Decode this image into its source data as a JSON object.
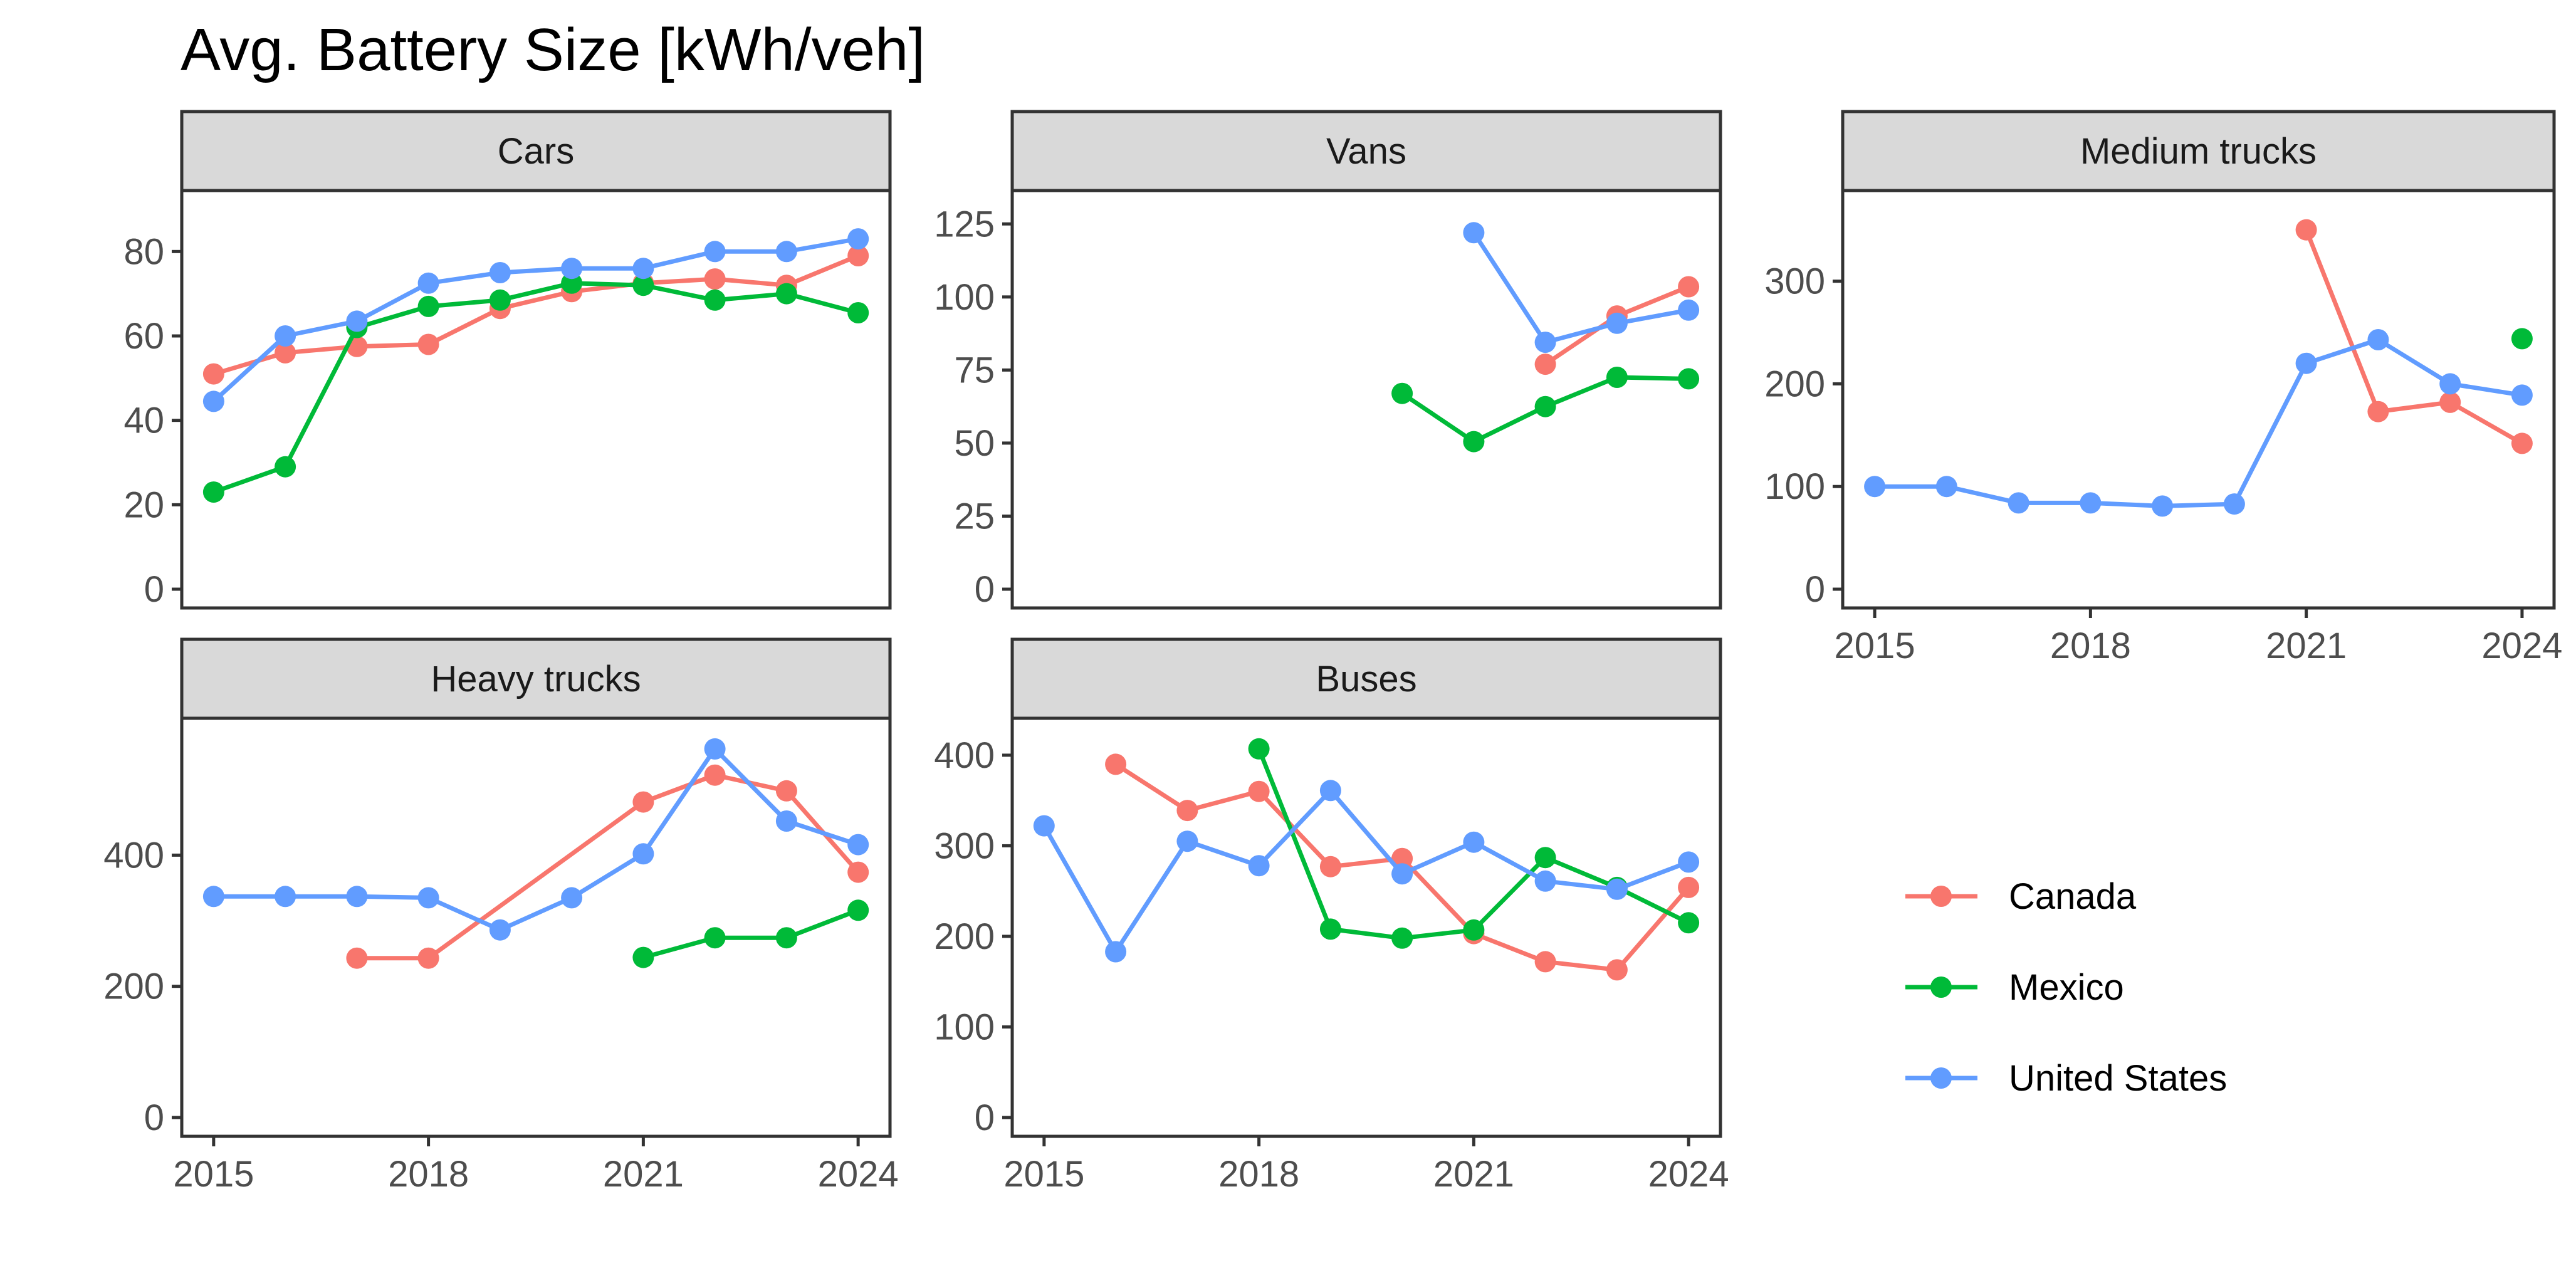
{
  "title": "Avg. Battery Size [kWh/veh]",
  "chart_data": {
    "type": "line",
    "title": "Avg. Battery Size [kWh/veh]",
    "facet": "small multiples, free y scales, shared x",
    "x_ticks": [
      2015,
      2018,
      2021,
      2024
    ],
    "xlim": [
      2015,
      2024
    ],
    "grid": false,
    "legend": {
      "position": "right",
      "entries": [
        {
          "name": "Canada",
          "color": "#F8766D"
        },
        {
          "name": "Mexico",
          "color": "#00BA38"
        },
        {
          "name": "United States",
          "color": "#619CFF"
        }
      ]
    },
    "panels": [
      {
        "name": "Cars",
        "ylim": [
          0,
          90
        ],
        "y_ticks": [
          0,
          20,
          40,
          60,
          80
        ],
        "series": [
          {
            "name": "Canada",
            "color": "#F8766D",
            "points": [
              [
                2015,
                51
              ],
              [
                2016,
                56
              ],
              [
                2017,
                57.5
              ],
              [
                2018,
                58
              ],
              [
                2019,
                66.5
              ],
              [
                2020,
                70.5
              ],
              [
                2021,
                72.5
              ],
              [
                2022,
                73.5
              ],
              [
                2023,
                72
              ],
              [
                2024,
                79
              ]
            ]
          },
          {
            "name": "Mexico",
            "color": "#00BA38",
            "points": [
              [
                2015,
                23
              ],
              [
                2016,
                29
              ],
              [
                2017,
                62
              ],
              [
                2018,
                67
              ],
              [
                2019,
                68.5
              ],
              [
                2020,
                72.5
              ],
              [
                2021,
                72
              ],
              [
                2022,
                68.5
              ],
              [
                2023,
                70
              ],
              [
                2024,
                65.5
              ]
            ]
          },
          {
            "name": "United States",
            "color": "#619CFF",
            "points": [
              [
                2015,
                44.5
              ],
              [
                2016,
                60
              ],
              [
                2017,
                63.5
              ],
              [
                2018,
                72.5
              ],
              [
                2019,
                75
              ],
              [
                2020,
                76
              ],
              [
                2021,
                76
              ],
              [
                2022,
                80
              ],
              [
                2023,
                80
              ],
              [
                2024,
                83
              ]
            ]
          }
        ]
      },
      {
        "name": "Vans",
        "ylim": [
          0,
          130
        ],
        "y_ticks": [
          0,
          25,
          50,
          75,
          100,
          125
        ],
        "series": [
          {
            "name": "Canada",
            "color": "#F8766D",
            "points": [
              [
                2022,
                77
              ],
              [
                2023,
                93.5
              ],
              [
                2024,
                103.5
              ]
            ]
          },
          {
            "name": "Mexico",
            "color": "#00BA38",
            "points": [
              [
                2020,
                67
              ],
              [
                2021,
                50.5
              ],
              [
                2022,
                62.5
              ],
              [
                2023,
                72.5
              ],
              [
                2024,
                72
              ]
            ]
          },
          {
            "name": "United States",
            "color": "#619CFF",
            "points": [
              [
                2021,
                122
              ],
              [
                2022,
                84.5
              ],
              [
                2023,
                91
              ],
              [
                2024,
                95.5
              ]
            ]
          }
        ]
      },
      {
        "name": "Medium trucks",
        "ylim": [
          0,
          370
        ],
        "y_ticks": [
          0,
          100,
          200,
          300
        ],
        "series": [
          {
            "name": "Canada",
            "color": "#F8766D",
            "points": [
              [
                2021,
                350
              ],
              [
                2022,
                173
              ],
              [
                2023,
                182
              ],
              [
                2024,
                142
              ]
            ]
          },
          {
            "name": "Mexico",
            "color": "#00BA38",
            "points": [
              [
                2024,
                244
              ]
            ]
          },
          {
            "name": "United States",
            "color": "#619CFF",
            "points": [
              [
                2015,
                100
              ],
              [
                2016,
                100
              ],
              [
                2017,
                84
              ],
              [
                2018,
                84
              ],
              [
                2019,
                81
              ],
              [
                2020,
                83
              ],
              [
                2021,
                220
              ],
              [
                2022,
                243
              ],
              [
                2023,
                200
              ],
              [
                2024,
                189
              ]
            ]
          }
        ]
      },
      {
        "name": "Heavy trucks",
        "ylim": [
          0,
          580
        ],
        "y_ticks": [
          0,
          200,
          400
        ],
        "series": [
          {
            "name": "Canada",
            "color": "#F8766D",
            "points": [
              [
                2017,
                243
              ],
              [
                2018,
                243
              ],
              [
                2021,
                481
              ],
              [
                2022,
                522
              ],
              [
                2023,
                498
              ],
              [
                2024,
                374
              ]
            ]
          },
          {
            "name": "Mexico",
            "color": "#00BA38",
            "points": [
              [
                2021,
                244
              ],
              [
                2022,
                274
              ],
              [
                2023,
                274
              ],
              [
                2024,
                316
              ]
            ]
          },
          {
            "name": "United States",
            "color": "#619CFF",
            "points": [
              [
                2015,
                337
              ],
              [
                2016,
                337
              ],
              [
                2017,
                337
              ],
              [
                2018,
                335
              ],
              [
                2019,
                286
              ],
              [
                2020,
                335
              ],
              [
                2021,
                402
              ],
              [
                2022,
                562
              ],
              [
                2023,
                452
              ],
              [
                2024,
                416
              ]
            ]
          }
        ]
      },
      {
        "name": "Buses",
        "ylim": [
          0,
          420
        ],
        "y_ticks": [
          0,
          100,
          200,
          300,
          400
        ],
        "series": [
          {
            "name": "Canada",
            "color": "#F8766D",
            "points": [
              [
                2016,
                390
              ],
              [
                2017,
                339
              ],
              [
                2018,
                360
              ],
              [
                2019,
                277
              ],
              [
                2020,
                286
              ],
              [
                2021,
                203
              ],
              [
                2022,
                172
              ],
              [
                2023,
                163
              ],
              [
                2024,
                254
              ]
            ]
          },
          {
            "name": "Mexico",
            "color": "#00BA38",
            "points": [
              [
                2018,
                407
              ],
              [
                2019,
                208
              ],
              [
                2020,
                198
              ],
              [
                2021,
                207
              ],
              [
                2022,
                287
              ],
              [
                2023,
                254
              ],
              [
                2024,
                215
              ]
            ]
          },
          {
            "name": "United States",
            "color": "#619CFF",
            "points": [
              [
                2015,
                322
              ],
              [
                2016,
                183
              ],
              [
                2017,
                305
              ],
              [
                2018,
                278
              ],
              [
                2019,
                361
              ],
              [
                2020,
                269
              ],
              [
                2021,
                304
              ],
              [
                2022,
                261
              ],
              [
                2023,
                252
              ],
              [
                2024,
                282
              ]
            ]
          }
        ]
      }
    ]
  }
}
